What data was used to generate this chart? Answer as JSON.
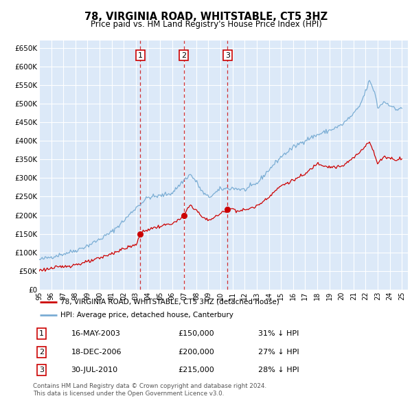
{
  "title": "78, VIRGINIA ROAD, WHITSTABLE, CT5 3HZ",
  "subtitle": "Price paid vs. HM Land Registry's House Price Index (HPI)",
  "plot_bg_color": "#dce9f8",
  "grid_color": "#ffffff",
  "hpi_line_color": "#7aadd4",
  "price_line_color": "#cc0000",
  "marker_color": "#cc0000",
  "sale_prices": [
    150000,
    200000,
    215000
  ],
  "sale_labels": [
    "1",
    "2",
    "3"
  ],
  "sale_date_nums": [
    2003.374,
    2006.962,
    2010.581
  ],
  "sale_info": [
    {
      "num": "1",
      "date": "16-MAY-2003",
      "price": "£150,000",
      "hpi": "31% ↓ HPI"
    },
    {
      "num": "2",
      "date": "18-DEC-2006",
      "price": "£200,000",
      "hpi": "27% ↓ HPI"
    },
    {
      "num": "3",
      "date": "30-JUL-2010",
      "price": "£215,000",
      "hpi": "28% ↓ HPI"
    }
  ],
  "legend_line1": "78, VIRGINIA ROAD, WHITSTABLE, CT5 3HZ (detached house)",
  "legend_line2": "HPI: Average price, detached house, Canterbury",
  "footer_line1": "Contains HM Land Registry data © Crown copyright and database right 2024.",
  "footer_line2": "This data is licensed under the Open Government Licence v3.0.",
  "yticks": [
    0,
    50000,
    100000,
    150000,
    200000,
    250000,
    300000,
    350000,
    400000,
    450000,
    500000,
    550000,
    600000,
    650000
  ],
  "ylim_max": 670000,
  "xmin": 1995.0,
  "xmax": 2025.5
}
